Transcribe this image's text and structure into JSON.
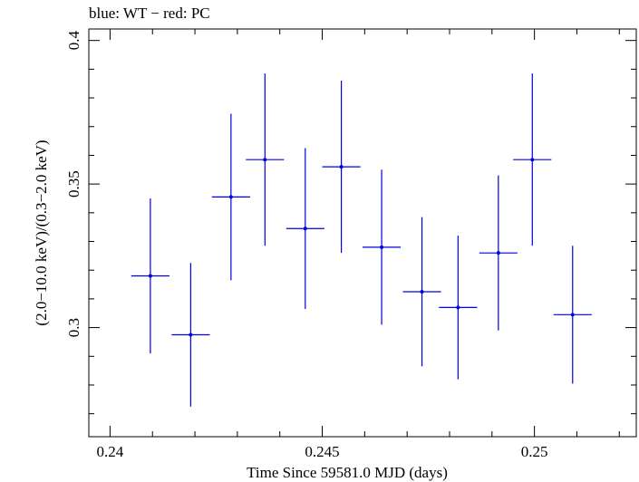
{
  "chart_data": {
    "type": "scatter",
    "title": "blue: WT − red: PC",
    "xlabel": "Time Since 59581.0 MJD (days)",
    "ylabel": "(2.0−10.0 keV)/(0.3−2.0 keV)",
    "xlim": [
      0.2395,
      0.2524
    ],
    "ylim": [
      0.262,
      0.404
    ],
    "x_ticks": [
      {
        "value": 0.24,
        "label": "0.24"
      },
      {
        "value": 0.245,
        "label": "0.245"
      },
      {
        "value": 0.25,
        "label": "0.25"
      }
    ],
    "y_ticks": [
      {
        "value": 0.3,
        "label": "0.3"
      },
      {
        "value": 0.35,
        "label": "0.35"
      },
      {
        "value": 0.4,
        "label": "0.4"
      }
    ],
    "grid": false,
    "series": [
      {
        "color": "#0000e0",
        "points": [
          {
            "x": 0.24095,
            "xerr": 0.00045,
            "y": 0.318,
            "yerr": 0.027
          },
          {
            "x": 0.2419,
            "xerr": 0.00045,
            "y": 0.2975,
            "yerr": 0.025
          },
          {
            "x": 0.24285,
            "xerr": 0.00045,
            "y": 0.3455,
            "yerr": 0.029
          },
          {
            "x": 0.24365,
            "xerr": 0.00045,
            "y": 0.3585,
            "yerr": 0.03
          },
          {
            "x": 0.2446,
            "xerr": 0.00045,
            "y": 0.3345,
            "yerr": 0.028
          },
          {
            "x": 0.24545,
            "xerr": 0.00045,
            "y": 0.356,
            "yerr": 0.03
          },
          {
            "x": 0.2464,
            "xerr": 0.00045,
            "y": 0.328,
            "yerr": 0.027
          },
          {
            "x": 0.24735,
            "xerr": 0.00045,
            "y": 0.3125,
            "yerr": 0.026
          },
          {
            "x": 0.2482,
            "xerr": 0.00045,
            "y": 0.307,
            "yerr": 0.025
          },
          {
            "x": 0.24915,
            "xerr": 0.00045,
            "y": 0.326,
            "yerr": 0.027
          },
          {
            "x": 0.24995,
            "xerr": 0.00045,
            "y": 0.3585,
            "yerr": 0.03
          },
          {
            "x": 0.2509,
            "xerr": 0.00045,
            "y": 0.3045,
            "yerr": 0.024
          }
        ]
      }
    ]
  }
}
